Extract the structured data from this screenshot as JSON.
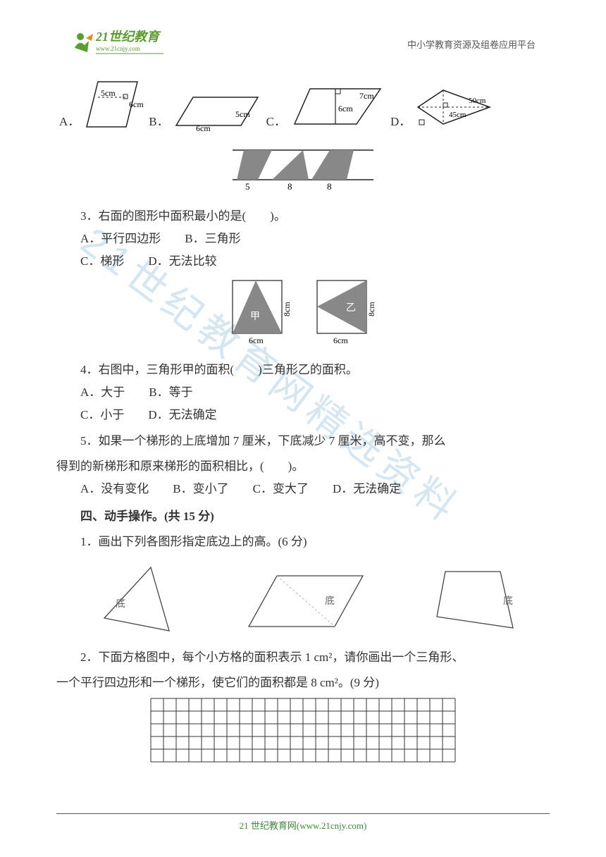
{
  "header": {
    "logo_main": "21世纪教育",
    "logo_sub": "www.21cnjy.com",
    "right_text": "中小学教育资源及组卷应用平台"
  },
  "watermark_text": "21世纪教育网精选资料",
  "q2": {
    "optA": {
      "label": "A．",
      "dim1": "5cm",
      "dim2": "6cm"
    },
    "optB": {
      "label": "B．",
      "dim1": "6cm",
      "dim2": "5cm"
    },
    "optC": {
      "label": "C．",
      "dim1": "7cm",
      "dim2": "6cm"
    },
    "optD": {
      "label": "D．",
      "dim1": "50cm",
      "dim2": "45cm"
    },
    "strip": {
      "n1": "5",
      "n2": "8",
      "n3": "8"
    }
  },
  "q3": {
    "text": "3．右面的图形中面积最小的是(　　)。",
    "A": "A．平行四边形　　B．三角形",
    "C": "C．梯形　　D．无法比较"
  },
  "q4": {
    "fig": {
      "jia": "甲",
      "yi": "乙",
      "w": "6cm",
      "h": "8cm"
    },
    "text": "4．右图中，三角形甲的面积(　　)三角形乙的面积。",
    "A": "A．大于　　B．等于",
    "C": "C．小于　　D．无法确定"
  },
  "q5": {
    "line1": "5．如果一个梯形的上底增加 7 厘米，下底减少 7 厘米，高不变，那么",
    "line2": "得到的新梯形和原来梯形的面积相比，(　　)。",
    "opts": "A．没有变化　　B．变小了　　C．变大了　　D．无法确定"
  },
  "sec4": {
    "title": "四、动手操作。(共 15 分)",
    "q1": "1．画出下列各图形指定底边上的高。(6 分)",
    "di": "底",
    "q2_line1": "2．下面方格图中，每个小方格的面积表示 1 cm²，请你画出一个三角形、",
    "q2_line2": "一个平行四边形和一个梯形，使它们的面积都是 8 cm²。(9 分)"
  },
  "footer": {
    "text": "21 世纪教育网(www.21cnjy.com)"
  },
  "colors": {
    "stroke": "#222222",
    "gray_fill": "#888888",
    "logo_green": "#5a9e2f",
    "logo_orange": "#e98b1f",
    "label_fill": "#888888"
  },
  "grid": {
    "cols": 24,
    "rows": 5,
    "cell": 18
  }
}
